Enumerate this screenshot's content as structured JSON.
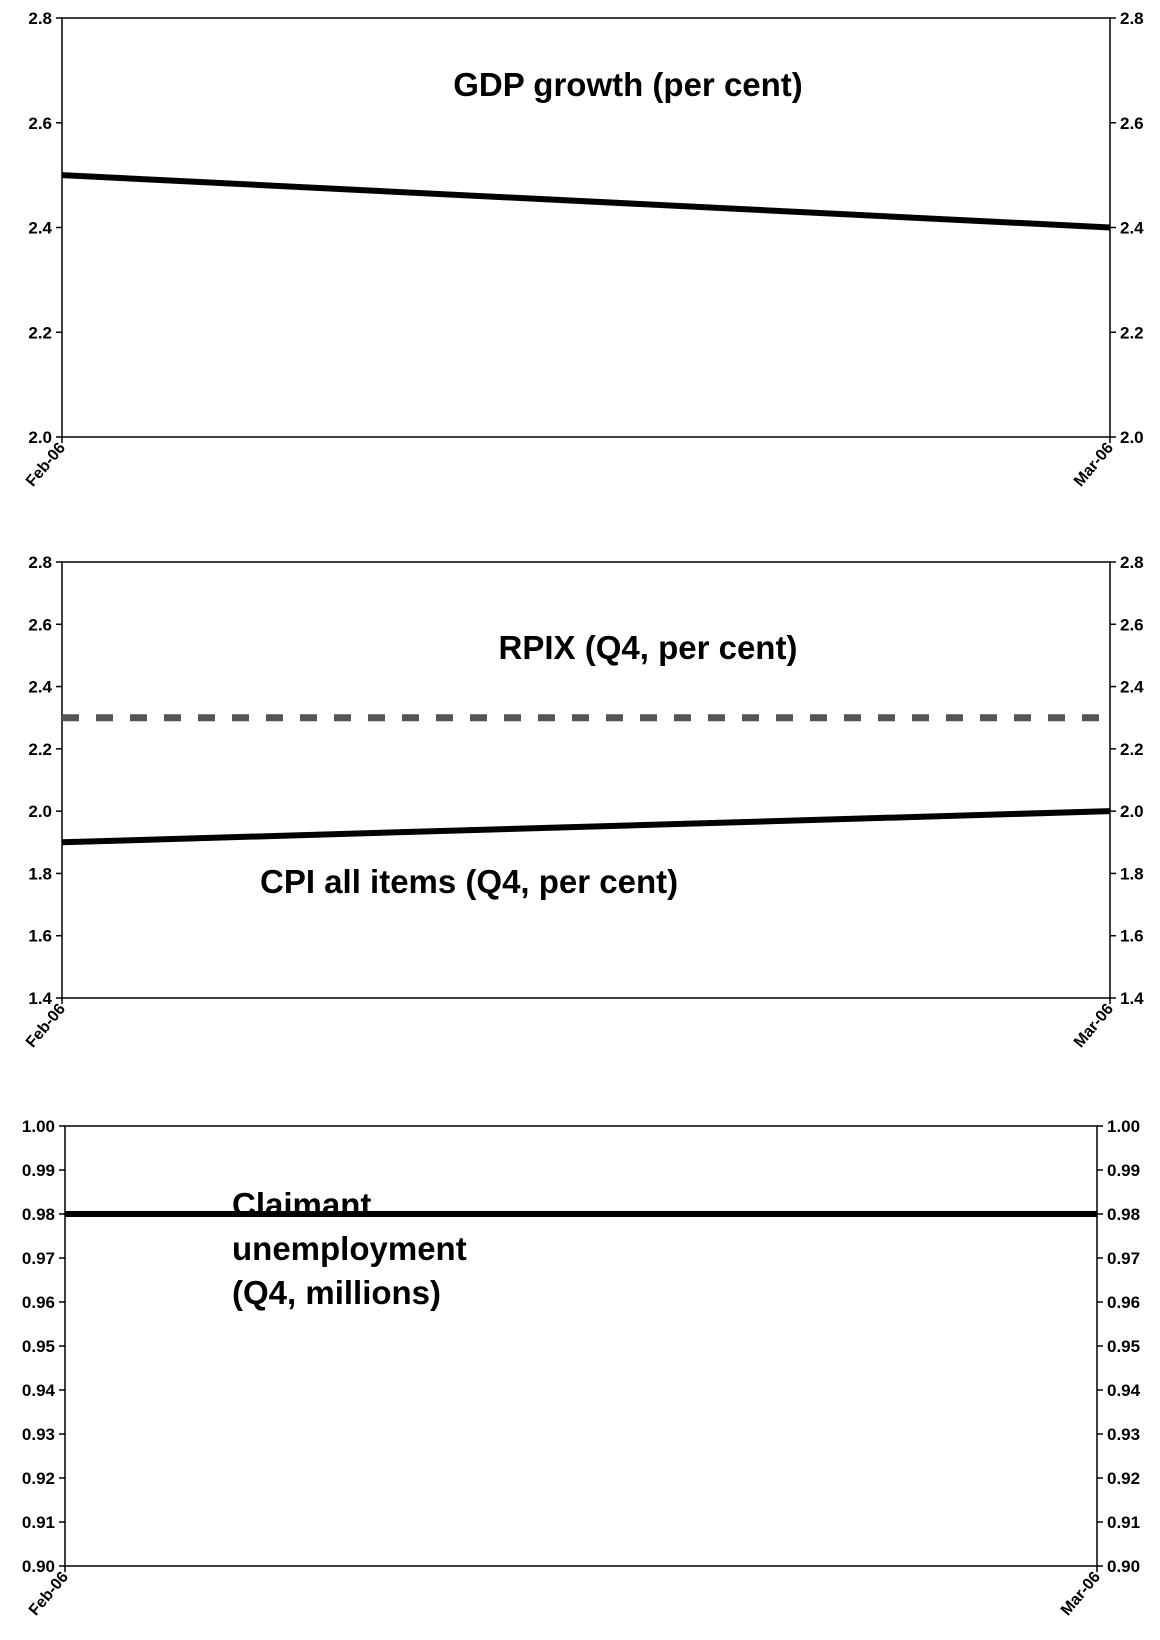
{
  "chart_data": [
    {
      "type": "line",
      "categories": [
        "Feb-06",
        "Mar-06"
      ],
      "ylim": [
        2.0,
        2.8
      ],
      "yticks": [
        "2.0",
        "2.2",
        "2.4",
        "2.6",
        "2.8"
      ],
      "grid": false,
      "right_axis": true,
      "series": [
        {
          "values": [
            2.5,
            2.4
          ],
          "color": "#000000",
          "style": "solid"
        }
      ],
      "annotations": [
        {
          "text": "GDP growth (per cent)"
        }
      ]
    },
    {
      "type": "line",
      "categories": [
        "Feb-06",
        "Mar-06"
      ],
      "ylim": [
        1.4,
        2.8
      ],
      "yticks": [
        "1.4",
        "1.6",
        "1.8",
        "2.0",
        "2.2",
        "2.4",
        "2.6",
        "2.8"
      ],
      "grid": false,
      "right_axis": true,
      "series": [
        {
          "values": [
            2.3,
            2.3
          ],
          "color": "#555555",
          "style": "dashed"
        },
        {
          "values": [
            1.9,
            2.0
          ],
          "color": "#000000",
          "style": "solid"
        }
      ],
      "annotations": [
        {
          "text": "RPIX (Q4, per cent)"
        },
        {
          "text": "CPI all items (Q4, per cent)"
        }
      ]
    },
    {
      "type": "line",
      "categories": [
        "Feb-06",
        "Mar-06"
      ],
      "ylim": [
        0.9,
        1.0
      ],
      "yticks": [
        "0.90",
        "0.91",
        "0.92",
        "0.93",
        "0.94",
        "0.95",
        "0.96",
        "0.97",
        "0.98",
        "0.99",
        "1.00"
      ],
      "grid": false,
      "right_axis": true,
      "series": [
        {
          "values": [
            0.98,
            0.98
          ],
          "color": "#000000",
          "style": "solid"
        }
      ],
      "annotations": [
        {
          "text": "Claimant unemployment (Q4, millions)",
          "lines": [
            "Claimant",
            "unemployment",
            "(Q4, millions)"
          ]
        }
      ]
    }
  ]
}
